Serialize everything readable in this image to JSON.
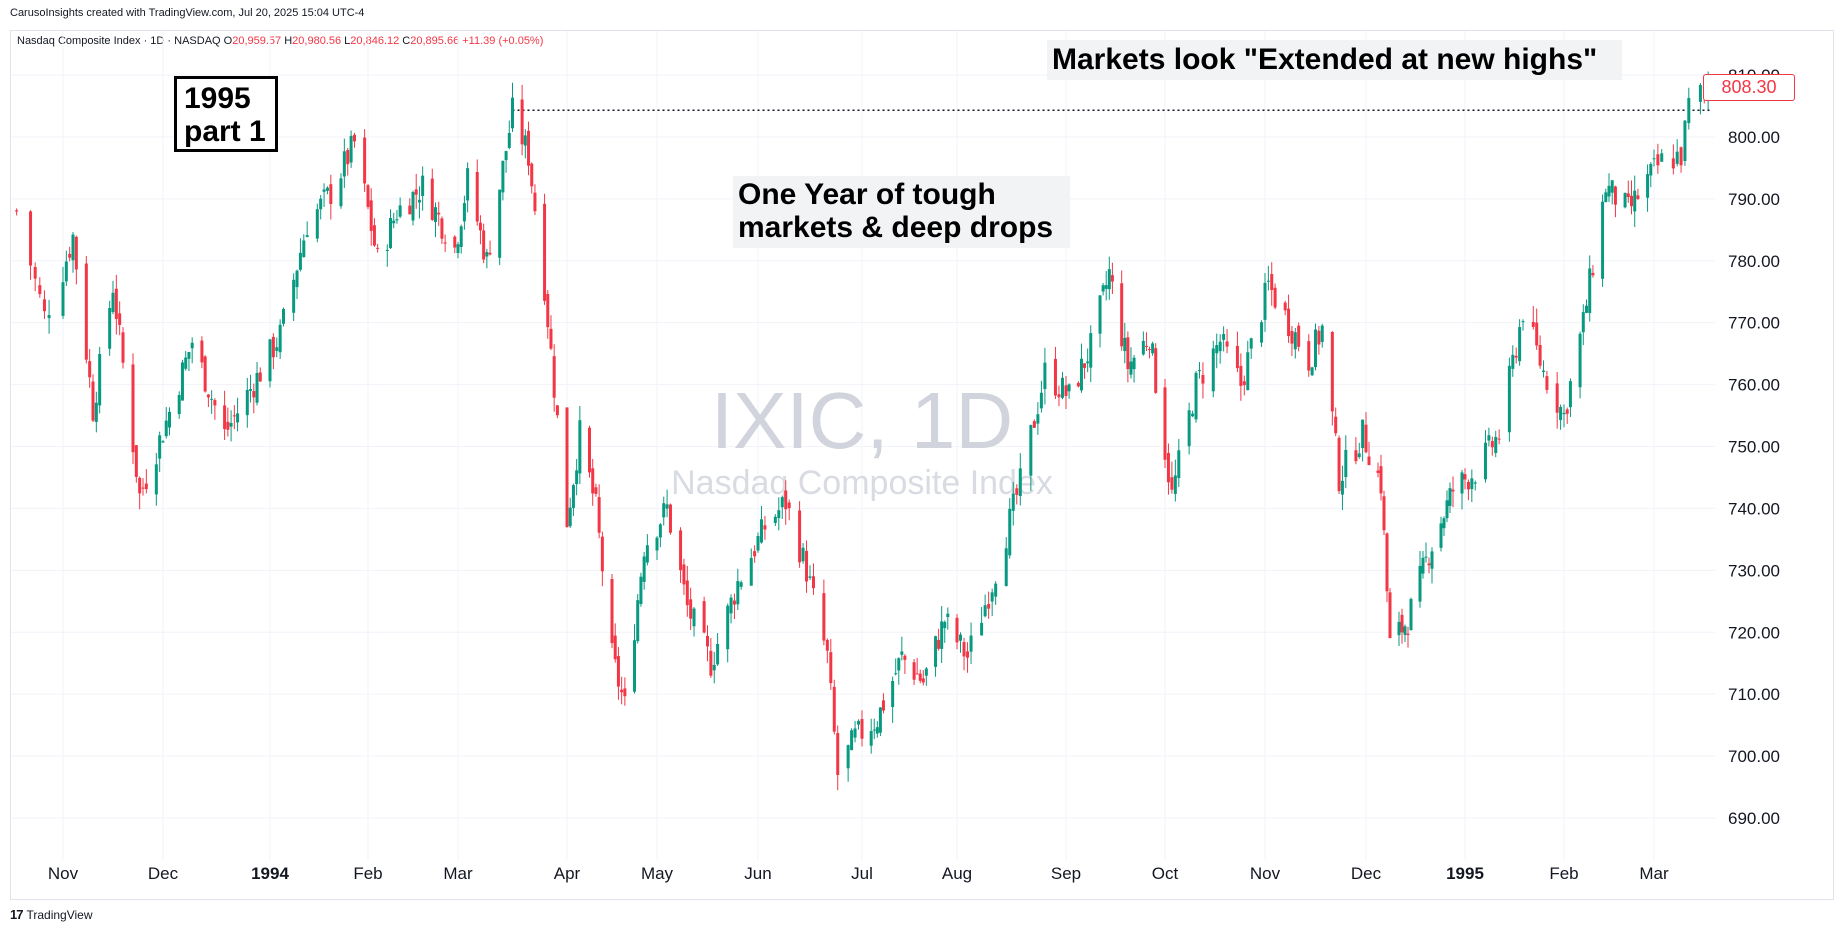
{
  "header": {
    "credit": "CarusoInsights created with TradingView.com, Jul 20, 2025 15:04 UTC-4",
    "symbol_line": "Nasdaq Composite Index · 1D · NASDAQ",
    "o_label": "O",
    "o_value": "20,959.57",
    "h_label": "H",
    "h_value": "20,980.56",
    "l_label": "L",
    "l_value": "20,846.12",
    "c_label": "C",
    "c_value": "20,895.66",
    "change": "+11.39 (+0.05%)"
  },
  "watermark": {
    "main": "IXIC, 1D",
    "sub": "Nasdaq Composite Index"
  },
  "annotations": {
    "box": {
      "line1": "1995",
      "line2": "part 1"
    },
    "tough": {
      "line1": "One Year of tough",
      "line2": "markets & deep drops"
    },
    "highs": "Markets look \"Extended at new highs\""
  },
  "price_badge": "808.30",
  "footer": {
    "logo_mark": "17",
    "logo_text": "TradingView"
  },
  "colors": {
    "up": "#089981",
    "down": "#f23645",
    "grid": "#f0f3fa"
  },
  "chart_data": {
    "type": "candlestick",
    "y_ticks": [
      "690.00",
      "700.00",
      "710.00",
      "720.00",
      "730.00",
      "740.00",
      "750.00",
      "760.00",
      "770.00",
      "780.00",
      "790.00",
      "800.00",
      "810.00"
    ],
    "x_ticks": [
      {
        "label": "Nov",
        "major": false
      },
      {
        "label": "Dec",
        "major": false
      },
      {
        "label": "1994",
        "major": true
      },
      {
        "label": "Feb",
        "major": false
      },
      {
        "label": "Mar",
        "major": false
      },
      {
        "label": "Apr",
        "major": false
      },
      {
        "label": "May",
        "major": false
      },
      {
        "label": "Jun",
        "major": false
      },
      {
        "label": "Jul",
        "major": false
      },
      {
        "label": "Aug",
        "major": false
      },
      {
        "label": "Sep",
        "major": false
      },
      {
        "label": "Oct",
        "major": false
      },
      {
        "label": "Nov",
        "major": false
      },
      {
        "label": "Dec",
        "major": false
      },
      {
        "label": "1995",
        "major": true
      },
      {
        "label": "Feb",
        "major": false
      },
      {
        "label": "Mar",
        "major": false
      }
    ],
    "ylim": [
      684,
      812
    ],
    "last_price": 808.3,
    "prior_high": 804.3,
    "path": [
      [
        "1993-10-22",
        788
      ],
      [
        "1993-10-28",
        771
      ],
      [
        "1993-11-04",
        784
      ],
      [
        "1993-11-10",
        756
      ],
      [
        "1993-11-16",
        776
      ],
      [
        "1993-11-24",
        742
      ],
      [
        "1993-12-02",
        754
      ],
      [
        "1993-12-10",
        767
      ],
      [
        "1993-12-20",
        752
      ],
      [
        "1993-12-31",
        762
      ],
      [
        "1994-01-06",
        768
      ],
      [
        "1994-01-14",
        786
      ],
      [
        "1994-01-21",
        791
      ],
      [
        "1994-01-28",
        799
      ],
      [
        "1994-02-04",
        780
      ],
      [
        "1994-02-10",
        788
      ],
      [
        "1994-02-18",
        792
      ],
      [
        "1994-02-28",
        782
      ],
      [
        "1994-03-04",
        793
      ],
      [
        "1994-03-10",
        780
      ],
      [
        "1994-03-15",
        795
      ],
      [
        "1994-03-18",
        804
      ],
      [
        "1994-03-23",
        797
      ],
      [
        "1994-03-28",
        776
      ],
      [
        "1994-04-04",
        738
      ],
      [
        "1994-04-08",
        752
      ],
      [
        "1994-04-13",
        740
      ],
      [
        "1994-04-18",
        716
      ],
      [
        "1994-04-22",
        708
      ],
      [
        "1994-04-28",
        734
      ],
      [
        "1994-05-05",
        740
      ],
      [
        "1994-05-11",
        724
      ],
      [
        "1994-05-18",
        715
      ],
      [
        "1994-05-26",
        728
      ],
      [
        "1994-06-03",
        737
      ],
      [
        "1994-06-09",
        741
      ],
      [
        "1994-06-15",
        730
      ],
      [
        "1994-06-21",
        716
      ],
      [
        "1994-06-24",
        697
      ],
      [
        "1994-06-29",
        703
      ],
      [
        "1994-07-06",
        706
      ],
      [
        "1994-07-14",
        716
      ],
      [
        "1994-07-21",
        712
      ],
      [
        "1994-07-28",
        722
      ],
      [
        "1994-08-04",
        716
      ],
      [
        "1994-08-11",
        728
      ],
      [
        "1994-08-19",
        744
      ],
      [
        "1994-08-26",
        762
      ],
      [
        "1994-09-02",
        758
      ],
      [
        "1994-09-09",
        766
      ],
      [
        "1994-09-15",
        778
      ],
      [
        "1994-09-21",
        763
      ],
      [
        "1994-09-28",
        768
      ],
      [
        "1994-10-05",
        742
      ],
      [
        "1994-10-12",
        760
      ],
      [
        "1994-10-19",
        767
      ],
      [
        "1994-10-25",
        760
      ],
      [
        "1994-11-02",
        776
      ],
      [
        "1994-11-08",
        770
      ],
      [
        "1994-11-14",
        764
      ],
      [
        "1994-11-18",
        769
      ],
      [
        "1994-11-23",
        745
      ],
      [
        "1994-11-30",
        752
      ],
      [
        "1994-12-06",
        744
      ],
      [
        "1994-12-09",
        718
      ],
      [
        "1994-12-15",
        722
      ],
      [
        "1994-12-22",
        733
      ],
      [
        "1994-12-30",
        743
      ],
      [
        "1995-01-06",
        746
      ],
      [
        "1995-01-13",
        752
      ],
      [
        "1995-01-20",
        772
      ],
      [
        "1995-01-26",
        762
      ],
      [
        "1995-02-01",
        755
      ],
      [
        "1995-02-07",
        770
      ],
      [
        "1995-02-14",
        792
      ],
      [
        "1995-02-21",
        788
      ],
      [
        "1995-02-27",
        793
      ],
      [
        "1995-03-03",
        796
      ],
      [
        "1995-03-08",
        797
      ],
      [
        "1995-03-10",
        805
      ],
      [
        "1995-03-15",
        808.3
      ]
    ]
  }
}
